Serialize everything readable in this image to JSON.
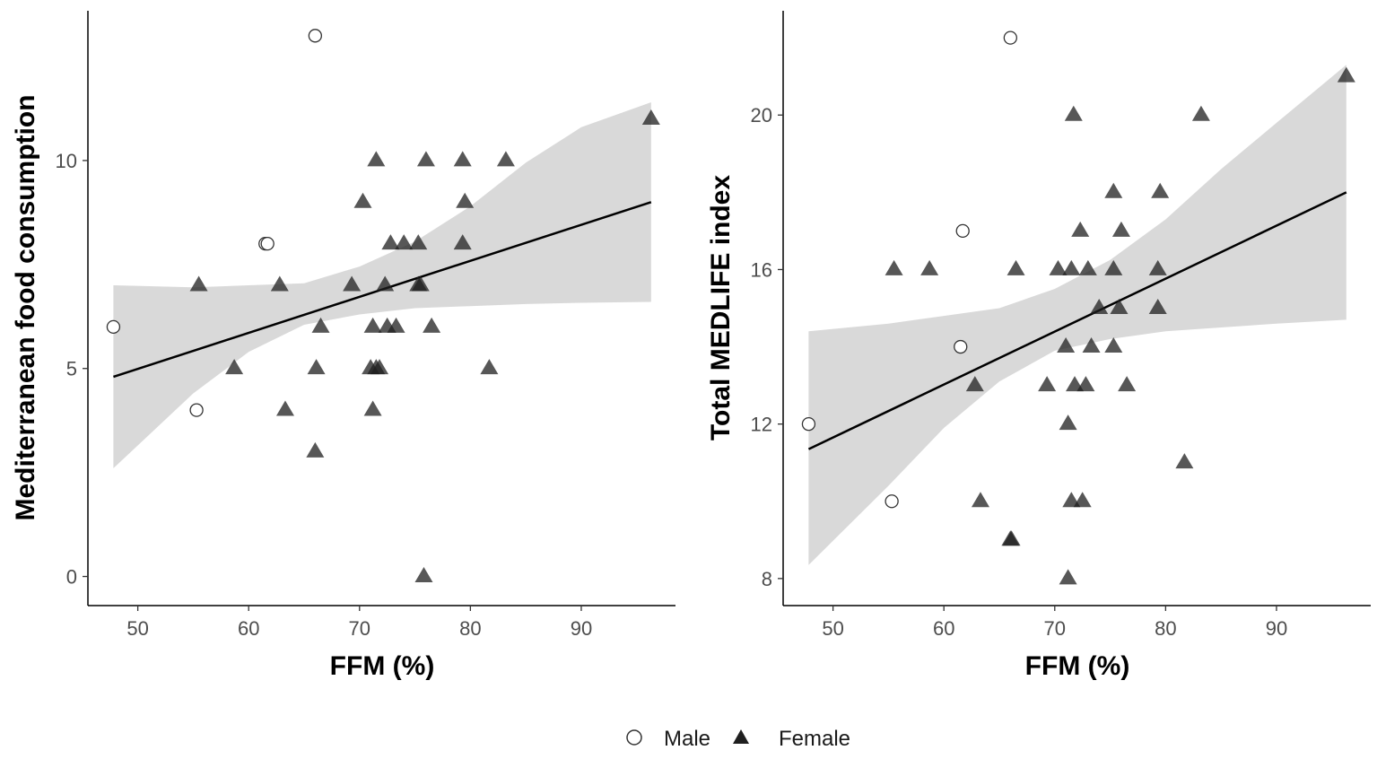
{
  "legend": {
    "items": [
      {
        "label": "Male",
        "shape": "circle",
        "fill": "#ffffff",
        "stroke": "#333333"
      },
      {
        "label": "Female",
        "shape": "triangle",
        "fill": "#1f1f1f",
        "stroke": "#1f1f1f"
      }
    ]
  },
  "colors": {
    "ribbon": "#d9d9d9",
    "fit_line": "#000000",
    "axis": "#000000",
    "male_fill": "#ffffff",
    "male_stroke": "#333333",
    "female_fill": "#1f1f1f"
  },
  "chart_data": [
    {
      "type": "scatter",
      "title": "",
      "xlabel": "FFM (%)",
      "ylabel": "Mediterranean food consumption",
      "xlim": [
        45.5,
        98.5
      ],
      "ylim": [
        -0.7,
        13.6
      ],
      "xticks": [
        50,
        60,
        70,
        80,
        90
      ],
      "yticks": [
        0,
        5,
        10
      ],
      "grid": false,
      "series": [
        {
          "name": "Male",
          "marker": "circle",
          "points": [
            {
              "x": 47.8,
              "y": 6
            },
            {
              "x": 55.3,
              "y": 4
            },
            {
              "x": 61.5,
              "y": 8
            },
            {
              "x": 61.7,
              "y": 8
            },
            {
              "x": 66.0,
              "y": 13
            }
          ]
        },
        {
          "name": "Female",
          "marker": "triangle",
          "points": [
            {
              "x": 55.5,
              "y": 7
            },
            {
              "x": 58.7,
              "y": 5
            },
            {
              "x": 62.8,
              "y": 7
            },
            {
              "x": 63.3,
              "y": 4
            },
            {
              "x": 66.0,
              "y": 3
            },
            {
              "x": 66.1,
              "y": 5
            },
            {
              "x": 66.5,
              "y": 6
            },
            {
              "x": 69.3,
              "y": 7
            },
            {
              "x": 70.3,
              "y": 9
            },
            {
              "x": 71.0,
              "y": 5
            },
            {
              "x": 71.2,
              "y": 6
            },
            {
              "x": 71.2,
              "y": 4
            },
            {
              "x": 71.5,
              "y": 10
            },
            {
              "x": 71.5,
              "y": 5
            },
            {
              "x": 71.8,
              "y": 5
            },
            {
              "x": 72.3,
              "y": 7
            },
            {
              "x": 72.5,
              "y": 6
            },
            {
              "x": 72.8,
              "y": 8
            },
            {
              "x": 73.3,
              "y": 6
            },
            {
              "x": 74.0,
              "y": 8
            },
            {
              "x": 75.3,
              "y": 8
            },
            {
              "x": 75.3,
              "y": 7
            },
            {
              "x": 75.5,
              "y": 7
            },
            {
              "x": 75.8,
              "y": 0
            },
            {
              "x": 76.0,
              "y": 10
            },
            {
              "x": 76.5,
              "y": 6
            },
            {
              "x": 79.3,
              "y": 10
            },
            {
              "x": 79.5,
              "y": 9
            },
            {
              "x": 79.3,
              "y": 8
            },
            {
              "x": 81.7,
              "y": 5
            },
            {
              "x": 83.2,
              "y": 10
            },
            {
              "x": 96.3,
              "y": 11
            }
          ]
        }
      ],
      "fit_line": {
        "x": [
          47.8,
          96.3
        ],
        "y": [
          4.8,
          9.0
        ]
      },
      "confidence_band": {
        "x": [
          47.8,
          55,
          60,
          65,
          70,
          75,
          80,
          85,
          90,
          96.3
        ],
        "lower": [
          2.6,
          4.4,
          5.4,
          6.05,
          6.3,
          6.45,
          6.5,
          6.55,
          6.58,
          6.6
        ],
        "upper": [
          7.0,
          6.95,
          7.0,
          7.05,
          7.45,
          8.05,
          8.9,
          9.95,
          10.8,
          11.4
        ]
      }
    },
    {
      "type": "scatter",
      "title": "",
      "xlabel": "FFM (%)",
      "ylabel": "Total MEDLIFE index",
      "xlim": [
        45.5,
        98.5
      ],
      "ylim": [
        7.3,
        22.7
      ],
      "xticks": [
        50,
        60,
        70,
        80,
        90
      ],
      "yticks": [
        8,
        12,
        16,
        20
      ],
      "grid": false,
      "series": [
        {
          "name": "Male",
          "marker": "circle",
          "points": [
            {
              "x": 47.8,
              "y": 12
            },
            {
              "x": 55.3,
              "y": 10
            },
            {
              "x": 61.5,
              "y": 14
            },
            {
              "x": 61.7,
              "y": 17
            },
            {
              "x": 66.0,
              "y": 22
            }
          ]
        },
        {
          "name": "Female",
          "marker": "triangle",
          "points": [
            {
              "x": 55.5,
              "y": 16
            },
            {
              "x": 58.7,
              "y": 16
            },
            {
              "x": 62.8,
              "y": 13
            },
            {
              "x": 63.3,
              "y": 10
            },
            {
              "x": 66.0,
              "y": 9
            },
            {
              "x": 66.1,
              "y": 9
            },
            {
              "x": 66.5,
              "y": 16
            },
            {
              "x": 69.3,
              "y": 13
            },
            {
              "x": 70.3,
              "y": 16
            },
            {
              "x": 71.0,
              "y": 14
            },
            {
              "x": 71.2,
              "y": 12
            },
            {
              "x": 71.2,
              "y": 8
            },
            {
              "x": 71.5,
              "y": 16
            },
            {
              "x": 71.5,
              "y": 10
            },
            {
              "x": 71.7,
              "y": 20
            },
            {
              "x": 71.8,
              "y": 13
            },
            {
              "x": 72.3,
              "y": 17
            },
            {
              "x": 72.5,
              "y": 10
            },
            {
              "x": 72.8,
              "y": 13
            },
            {
              "x": 73.0,
              "y": 16
            },
            {
              "x": 73.3,
              "y": 14
            },
            {
              "x": 74.0,
              "y": 15
            },
            {
              "x": 75.3,
              "y": 18
            },
            {
              "x": 75.3,
              "y": 16
            },
            {
              "x": 75.3,
              "y": 14
            },
            {
              "x": 75.8,
              "y": 15
            },
            {
              "x": 76.0,
              "y": 17
            },
            {
              "x": 76.5,
              "y": 13
            },
            {
              "x": 79.5,
              "y": 18
            },
            {
              "x": 79.3,
              "y": 16
            },
            {
              "x": 79.3,
              "y": 15
            },
            {
              "x": 81.7,
              "y": 11
            },
            {
              "x": 83.2,
              "y": 20
            },
            {
              "x": 96.3,
              "y": 21
            }
          ]
        }
      ],
      "fit_line": {
        "x": [
          47.8,
          96.3
        ],
        "y": [
          11.35,
          18.0
        ]
      },
      "confidence_band": {
        "x": [
          47.8,
          55,
          60,
          65,
          70,
          75,
          80,
          85,
          90,
          96.3
        ],
        "lower": [
          8.35,
          10.4,
          11.9,
          13.1,
          13.9,
          14.2,
          14.4,
          14.5,
          14.6,
          14.7
        ],
        "upper": [
          14.4,
          14.6,
          14.8,
          15.0,
          15.5,
          16.25,
          17.3,
          18.6,
          19.8,
          21.3
        ]
      }
    }
  ]
}
